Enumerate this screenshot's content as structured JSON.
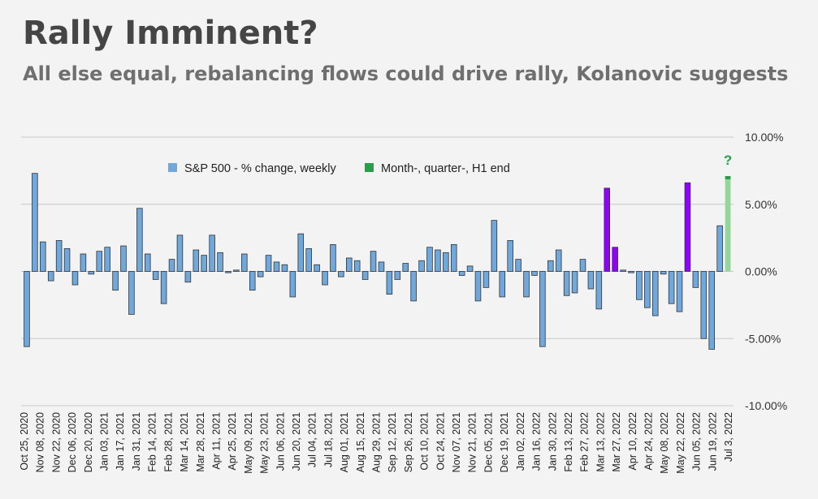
{
  "title": "Rally Imminent?",
  "subtitle": "All else equal, rebalancing flows could drive rally, Kolanovic suggests",
  "colors": {
    "weekly": "#6fa8dc",
    "highlight": "#8f00ff",
    "forecast": "#93d89a",
    "forecast_cap": "#27a04a",
    "gridline": "#c8c8c8",
    "bar_outline": "#333333"
  },
  "chart_data": {
    "type": "bar",
    "title": "Rally Imminent?",
    "subtitle": "All else equal, rebalancing flows could drive rally, Kolanovic suggests",
    "xlabel": "",
    "ylabel": "",
    "ylim": [
      -10,
      10
    ],
    "y_axis_side": "right",
    "y_ticks": [
      "10.00%",
      "5.00%",
      "0.00%",
      "-5.00%",
      "-10.00%"
    ],
    "y_tick_values": [
      10,
      5,
      0,
      -5,
      -10
    ],
    "grid": true,
    "legend": [
      {
        "label": "S&P 500 - % change, weekly",
        "color": "#6fa8dc"
      },
      {
        "label": "Month-, quarter-, H1 end",
        "color": "#27a04a"
      }
    ],
    "legend_position": "top-center",
    "x_tick_labels": [
      "Oct 25, 2020",
      "Nov 08, 2020",
      "Nov 22, 2020",
      "Dec 06, 2020",
      "Dec 20, 2020",
      "Jan 03, 2021",
      "Jan 17, 2021",
      "Jan 31, 2021",
      "Feb 14, 2021",
      "Feb 28, 2021",
      "Mar 14, 2021",
      "Mar 28, 2021",
      "Apr 11, 2021",
      "Apr 25, 2021",
      "May 09, 2021",
      "May 23, 2021",
      "Jun 06, 2021",
      "Jun 20, 2021",
      "Jul 04, 2021",
      "Jul 18, 2021",
      "Aug 01, 2021",
      "Aug 15, 2021",
      "Aug 29, 2021",
      "Sep 12, 2021",
      "Sep 26, 2021",
      "Oct 10, 2021",
      "Oct 24, 2021",
      "Nov 07, 2021",
      "Nov 21, 2021",
      "Dec 05, 2021",
      "Dec 19, 2021",
      "Jan 02, 2022",
      "Jan 16, 2022",
      "Jan 30, 2022",
      "Feb 13, 2022",
      "Feb 27, 2022",
      "Mar 13, 2022",
      "Mar 27, 2022",
      "Apr 10, 2022",
      "Apr 24, 2022",
      "May 08, 2022",
      "May 22, 2022",
      "Jun 05, 2022",
      "Jun 19, 2022",
      "Jul 3, 2022"
    ],
    "series": [
      {
        "name": "S&P 500 - % change, weekly",
        "values": [
          -5.6,
          7.3,
          2.2,
          -0.7,
          2.3,
          1.7,
          -1.0,
          1.3,
          -0.2,
          1.5,
          1.8,
          -1.4,
          1.9,
          -3.2,
          4.7,
          1.3,
          -0.6,
          -2.4,
          0.9,
          2.7,
          -0.8,
          1.6,
          1.2,
          2.7,
          1.4,
          -0.1,
          0.1,
          1.3,
          -1.4,
          -0.4,
          1.2,
          0.7,
          0.5,
          -1.9,
          2.8,
          1.7,
          0.5,
          -1.0,
          2.0,
          -0.4,
          1.0,
          0.8,
          -0.6,
          1.5,
          0.7,
          -1.7,
          -0.6,
          0.6,
          -2.2,
          0.8,
          1.8,
          1.6,
          1.4,
          2.0,
          -0.3,
          0.4,
          -2.2,
          -1.2,
          3.8,
          -1.9,
          2.3,
          0.9,
          -1.9,
          -0.3,
          -5.6,
          0.8,
          1.6,
          -1.8,
          -1.6,
          0.9,
          -1.3,
          -2.8,
          6.2,
          1.8,
          0.1,
          -0.1,
          -2.1,
          -2.7,
          -3.3,
          -0.2,
          -2.4,
          -3.0,
          6.6,
          -1.2,
          -5.0,
          -5.8,
          3.4,
          7.1
        ],
        "highlight_indices": [
          72,
          73,
          82
        ],
        "forecast_indices": [
          87
        ]
      }
    ],
    "annotations": [
      {
        "text": "?",
        "series_index": 87
      }
    ]
  }
}
